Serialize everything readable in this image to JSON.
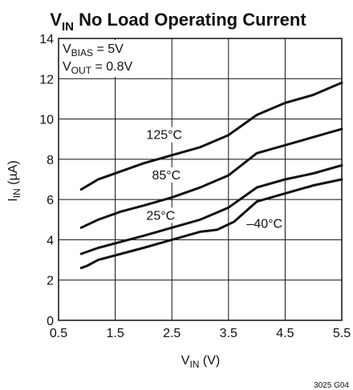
{
  "chart_data": {
    "type": "line",
    "title": "V",
    "title_sub": "IN",
    "title_rest": " No Load Operating Current",
    "xlabel": "V",
    "xlabel_sub": "IN",
    "xlabel_rest": " (V)",
    "ylabel": "I",
    "ylabel_sub": "IN",
    "ylabel_rest": " (µA)",
    "xlim": [
      0.5,
      5.5
    ],
    "ylim": [
      0,
      14
    ],
    "xticks": [
      0.5,
      1.5,
      2.5,
      3.5,
      4.5,
      5.5
    ],
    "xtick_labels": [
      "0.5",
      "1.5",
      "2.5",
      "3.5",
      "4.5",
      "5.5"
    ],
    "yticks": [
      0,
      2,
      4,
      6,
      8,
      10,
      12,
      14
    ],
    "ytick_labels": [
      "0",
      "2",
      "4",
      "6",
      "8",
      "10",
      "12",
      "14"
    ],
    "grid": true,
    "annotation": {
      "line1_main": "V",
      "line1_sub": "BIAS",
      "line1_rest": " = 5V",
      "line2_main": "V",
      "line2_sub": "OUT",
      "line2_rest": " = 0.8V"
    },
    "series": [
      {
        "name": "125°C",
        "x": [
          0.9,
          1.2,
          1.6,
          2.0,
          2.5,
          3.0,
          3.5,
          4.0,
          4.5,
          5.0,
          5.5
        ],
        "y": [
          6.5,
          7.0,
          7.4,
          7.8,
          8.2,
          8.6,
          9.2,
          10.2,
          10.8,
          11.2,
          11.8
        ]
      },
      {
        "name": "85°C",
        "x": [
          0.9,
          1.2,
          1.6,
          2.0,
          2.5,
          3.0,
          3.5,
          4.0,
          4.5,
          5.0,
          5.5
        ],
        "y": [
          4.6,
          5.0,
          5.4,
          5.7,
          6.1,
          6.6,
          7.2,
          8.3,
          8.7,
          9.1,
          9.5
        ]
      },
      {
        "name": "25°C",
        "x": [
          0.9,
          1.2,
          1.6,
          2.0,
          2.5,
          3.0,
          3.5,
          4.0,
          4.5,
          5.0,
          5.5
        ],
        "y": [
          3.3,
          3.6,
          3.9,
          4.2,
          4.6,
          5.0,
          5.6,
          6.6,
          7.0,
          7.3,
          7.7
        ]
      },
      {
        "name": "–40°C",
        "x": [
          0.9,
          1.0,
          1.2,
          1.6,
          2.0,
          2.5,
          3.0,
          3.3,
          3.6,
          4.0,
          4.5,
          5.0,
          5.5
        ],
        "y": [
          2.6,
          2.7,
          3.0,
          3.3,
          3.6,
          4.0,
          4.4,
          4.5,
          4.9,
          5.9,
          6.3,
          6.7,
          7.0
        ]
      }
    ],
    "figure_id": "3025 G04"
  }
}
